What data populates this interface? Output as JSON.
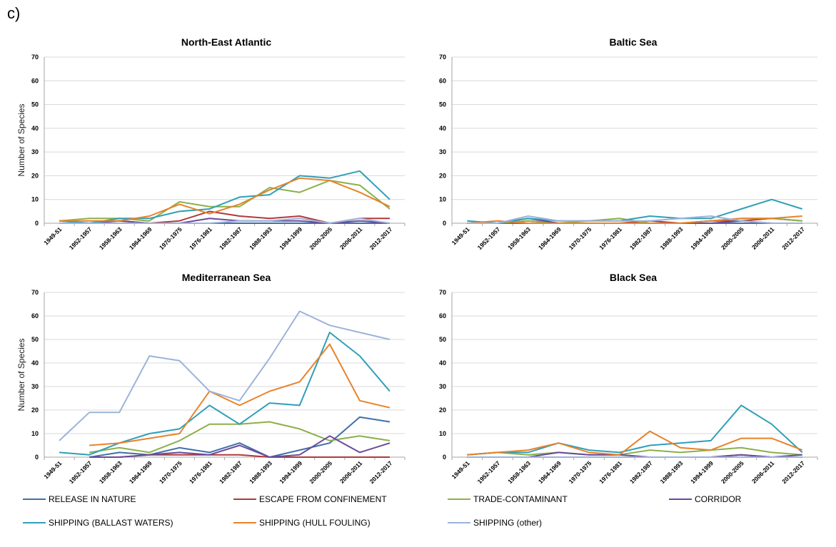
{
  "panel_label": "c)",
  "legend": [
    {
      "label": "RELEASE IN NATURE",
      "color": "#3e6fa8"
    },
    {
      "label": "ESCAPE FROM CONFINEMENT",
      "color": "#b03a3a"
    },
    {
      "label": "TRADE-CONTAMINANT",
      "color": "#8bb04a"
    },
    {
      "label": "CORRIDOR",
      "color": "#6a4a9a"
    },
    {
      "label": "SHIPPING (BALLAST WATERS)",
      "color": "#2f9fb7"
    },
    {
      "label": "SHIPPING (HULL FOULING)",
      "color": "#e8822a"
    },
    {
      "label": "SHIPPING (other)",
      "color": "#9cb3da"
    }
  ],
  "chart_data": [
    {
      "type": "line",
      "title": "North-East Atlantic",
      "ylabel": "Number of Species",
      "ylim": [
        0,
        70
      ],
      "yticks": [
        "0",
        "10",
        "20",
        "30",
        "40",
        "50",
        "60",
        "70"
      ],
      "grid": true,
      "categories": [
        "1949-51",
        "1952-1957",
        "1958-1963",
        "1964-1969",
        "1970-1975",
        "1976-1981",
        "1982-1987",
        "1988-1993",
        "1994-1999",
        "2000-2005",
        "2006-2011",
        "2012-2017"
      ],
      "series": [
        {
          "name": "RELEASE IN NATURE",
          "color": "#3e6fa8",
          "values": [
            0,
            0,
            0,
            0,
            0,
            0,
            0,
            0,
            0,
            0,
            0,
            0
          ]
        },
        {
          "name": "ESCAPE FROM CONFINEMENT",
          "color": "#b03a3a",
          "values": [
            1,
            0,
            1,
            0,
            1,
            5,
            3,
            2,
            3,
            0,
            2,
            2
          ]
        },
        {
          "name": "TRADE-CONTAMINANT",
          "color": "#8bb04a",
          "values": [
            1,
            2,
            2,
            1,
            9,
            7,
            7,
            15,
            13,
            18,
            16,
            6
          ]
        },
        {
          "name": "CORRIDOR",
          "color": "#6a4a9a",
          "values": [
            0,
            0,
            1,
            0,
            0,
            2,
            1,
            1,
            1,
            0,
            1,
            0
          ]
        },
        {
          "name": "SHIPPING (BALLAST WATERS)",
          "color": "#2f9fb7",
          "values": [
            1,
            0,
            2,
            2,
            5,
            6,
            11,
            12,
            20,
            19,
            22,
            10
          ]
        },
        {
          "name": "SHIPPING (HULL FOULING)",
          "color": "#e8822a",
          "values": [
            1,
            1,
            1,
            3,
            8,
            4,
            8,
            14,
            19,
            18,
            13,
            7
          ]
        },
        {
          "name": "SHIPPING (other)",
          "color": "#9cb3da",
          "values": [
            0,
            0,
            0,
            0,
            0,
            0,
            1,
            1,
            2,
            0,
            2,
            0
          ]
        }
      ]
    },
    {
      "type": "line",
      "title": "Baltic Sea",
      "ylabel": "",
      "ylim": [
        0,
        70
      ],
      "yticks": [
        "0",
        "10",
        "20",
        "30",
        "40",
        "50",
        "60",
        "70"
      ],
      "grid": true,
      "categories": [
        "1949-51",
        "1952-1957",
        "1958-1963",
        "1964-1969",
        "1970-1975",
        "1976-1981",
        "1982-1987",
        "1988-1993",
        "1994-1999",
        "2000-2005",
        "2006-2011",
        "2012-2017"
      ],
      "series": [
        {
          "name": "RELEASE IN NATURE",
          "color": "#3e6fa8",
          "values": [
            0,
            0,
            0,
            0,
            0,
            0,
            0,
            0,
            0,
            0,
            0,
            0
          ]
        },
        {
          "name": "ESCAPE FROM CONFINEMENT",
          "color": "#b03a3a",
          "values": [
            0,
            0,
            1,
            0,
            0,
            0,
            1,
            0,
            1,
            1,
            2,
            1
          ]
        },
        {
          "name": "TRADE-CONTAMINANT",
          "color": "#8bb04a",
          "values": [
            0,
            0,
            1,
            0,
            1,
            2,
            0,
            0,
            1,
            2,
            2,
            1
          ]
        },
        {
          "name": "CORRIDOR",
          "color": "#6a4a9a",
          "values": [
            0,
            0,
            2,
            0,
            0,
            0,
            0,
            0,
            0,
            1,
            0,
            0
          ]
        },
        {
          "name": "SHIPPING (BALLAST WATERS)",
          "color": "#2f9fb7",
          "values": [
            1,
            0,
            2,
            1,
            1,
            1,
            3,
            2,
            2,
            6,
            10,
            6
          ]
        },
        {
          "name": "SHIPPING (HULL FOULING)",
          "color": "#e8822a",
          "values": [
            0,
            1,
            0,
            0,
            0,
            0,
            0,
            0,
            1,
            2,
            2,
            3
          ]
        },
        {
          "name": "SHIPPING (other)",
          "color": "#9cb3da",
          "values": [
            0,
            0,
            3,
            1,
            1,
            1,
            1,
            2,
            3,
            1,
            0,
            0
          ]
        }
      ]
    },
    {
      "type": "line",
      "title": "Mediterranean Sea",
      "ylabel": "Number of Species",
      "ylim": [
        0,
        70
      ],
      "yticks": [
        "0",
        "10",
        "20",
        "30",
        "40",
        "50",
        "60",
        "70"
      ],
      "grid": true,
      "categories": [
        "1949-51",
        "1952-1957",
        "1958-1963",
        "1964-1969",
        "1970-1975",
        "1976-1981",
        "1982-1987",
        "1988-1993",
        "1994-1999",
        "2000-2005",
        "2006-2011",
        "2012-2017"
      ],
      "series": [
        {
          "name": "RELEASE IN NATURE",
          "color": "#3e6fa8",
          "values": [
            null,
            0,
            2,
            1,
            4,
            2,
            6,
            0,
            3,
            6,
            17,
            15
          ]
        },
        {
          "name": "ESCAPE FROM CONFINEMENT",
          "color": "#b03a3a",
          "values": [
            null,
            0,
            0,
            1,
            1,
            1,
            1,
            0,
            0,
            0,
            0,
            0
          ]
        },
        {
          "name": "TRADE-CONTAMINANT",
          "color": "#8bb04a",
          "values": [
            null,
            2,
            4,
            2,
            7,
            14,
            14,
            15,
            12,
            7,
            9,
            7
          ]
        },
        {
          "name": "CORRIDOR",
          "color": "#6a4a9a",
          "values": [
            null,
            0,
            0,
            1,
            2,
            1,
            5,
            0,
            1,
            9,
            2,
            6
          ]
        },
        {
          "name": "SHIPPING (BALLAST WATERS)",
          "color": "#2f9fb7",
          "values": [
            2,
            1,
            6,
            10,
            12,
            22,
            14,
            23,
            22,
            53,
            43,
            28
          ]
        },
        {
          "name": "SHIPPING (HULL FOULING)",
          "color": "#e8822a",
          "values": [
            null,
            5,
            6,
            8,
            10,
            28,
            22,
            28,
            32,
            48,
            24,
            21
          ]
        },
        {
          "name": "SHIPPING (other)",
          "color": "#9cb3da",
          "values": [
            7,
            19,
            19,
            43,
            41,
            28,
            24,
            42,
            62,
            56,
            53,
            50
          ]
        }
      ]
    },
    {
      "type": "line",
      "title": "Black Sea",
      "ylabel": "",
      "ylim": [
        0,
        70
      ],
      "yticks": [
        "0",
        "10",
        "20",
        "30",
        "40",
        "50",
        "60",
        "70"
      ],
      "grid": true,
      "categories": [
        "1949-51",
        "1952-1957",
        "1958-1963",
        "1964-1969",
        "1970-1975",
        "1976-1981",
        "1982-1987",
        "1988-1993",
        "1994-1999",
        "2000-2005",
        "2006-2011",
        "2012-2017"
      ],
      "series": [
        {
          "name": "RELEASE IN NATURE",
          "color": "#3e6fa8",
          "values": [
            0,
            0,
            0,
            0,
            0,
            0,
            0,
            0,
            0,
            0,
            0,
            0
          ]
        },
        {
          "name": "ESCAPE FROM CONFINEMENT",
          "color": "#b03a3a",
          "values": [
            0,
            0,
            0,
            0,
            0,
            0,
            0,
            0,
            0,
            1,
            0,
            0
          ]
        },
        {
          "name": "TRADE-CONTAMINANT",
          "color": "#8bb04a",
          "values": [
            1,
            2,
            1,
            2,
            1,
            1,
            3,
            2,
            3,
            4,
            2,
            1
          ]
        },
        {
          "name": "CORRIDOR",
          "color": "#6a4a9a",
          "values": [
            0,
            0,
            0,
            2,
            1,
            1,
            0,
            0,
            0,
            1,
            0,
            1
          ]
        },
        {
          "name": "SHIPPING (BALLAST WATERS)",
          "color": "#2f9fb7",
          "values": [
            1,
            2,
            2,
            6,
            3,
            2,
            5,
            6,
            7,
            22,
            14,
            2
          ]
        },
        {
          "name": "SHIPPING (HULL FOULING)",
          "color": "#e8822a",
          "values": [
            1,
            2,
            3,
            6,
            2,
            1,
            11,
            4,
            3,
            8,
            8,
            3
          ]
        },
        {
          "name": "SHIPPING (other)",
          "color": "#9cb3da",
          "values": [
            0,
            0,
            0,
            0,
            0,
            0,
            0,
            0,
            0,
            0,
            0,
            0
          ]
        }
      ]
    }
  ]
}
